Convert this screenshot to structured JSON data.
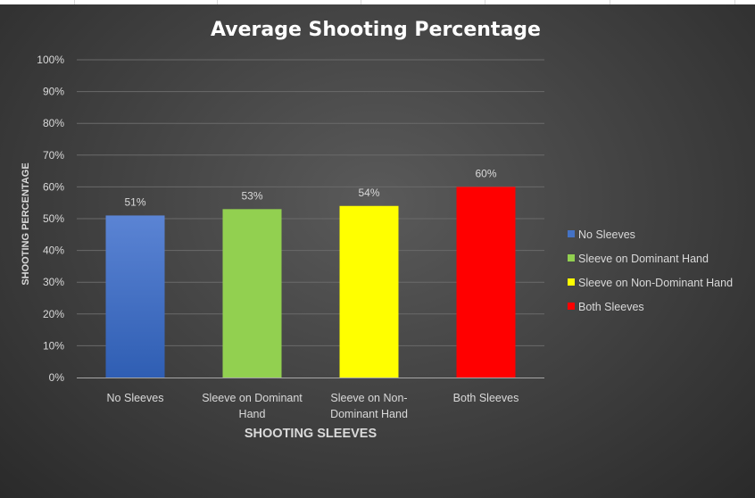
{
  "chart_data": {
    "type": "bar",
    "title": "Average Shooting Percentage",
    "xlabel": "SHOOTING SLEEVES",
    "ylabel": "SHOOTING PERCENTAGE",
    "ylim": [
      0,
      100
    ],
    "yticks": [
      0,
      10,
      20,
      30,
      40,
      50,
      60,
      70,
      80,
      90,
      100
    ],
    "ytick_labels": [
      "0%",
      "10%",
      "20%",
      "30%",
      "40%",
      "50%",
      "60%",
      "70%",
      "80%",
      "90%",
      "100%"
    ],
    "grid": true,
    "legend_position": "right",
    "categories": [
      {
        "lines": [
          "No Sleeves"
        ]
      },
      {
        "lines": [
          "Sleeve on Dominant",
          "Hand"
        ]
      },
      {
        "lines": [
          "Sleeve on Non-",
          "Dominant Hand"
        ]
      },
      {
        "lines": [
          "Both Sleeves"
        ]
      }
    ],
    "series": [
      {
        "name": "No Sleeves",
        "value": 51,
        "label": "51%",
        "color": "#4472c4",
        "color_top": "#5b84d4",
        "color_bottom": "#2f5eb3"
      },
      {
        "name": "Sleeve on Dominant Hand",
        "value": 53,
        "label": "53%",
        "color": "#92d050",
        "color_top": "#92d050",
        "color_bottom": "#92d050"
      },
      {
        "name": "Sleeve on Non-Dominant Hand",
        "value": 54,
        "label": "54%",
        "color": "#ffff00",
        "color_top": "#ffff00",
        "color_bottom": "#ffff00"
      },
      {
        "name": "Both Sleeves",
        "value": 60,
        "label": "60%",
        "color": "#ff0000",
        "color_top": "#ff0000",
        "color_bottom": "#ff0000"
      }
    ]
  }
}
